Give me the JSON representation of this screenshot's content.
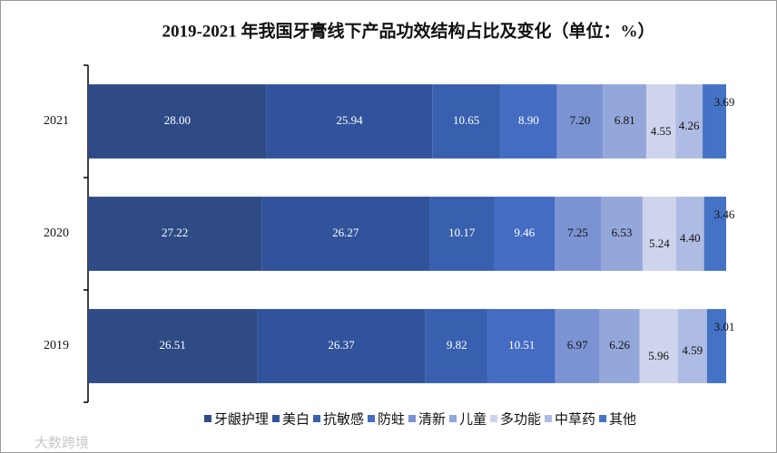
{
  "chart_data": {
    "type": "stacked-bar-horizontal",
    "title": "2019-2021 年我国牙膏线下产品功效结构占比及变化（单位：%）",
    "categories": [
      "2021",
      "2020",
      "2019"
    ],
    "xlim": [
      0,
      100
    ],
    "series": [
      {
        "name": "牙龈护理",
        "color": "#2e4b86",
        "values": [
          28.0,
          27.22,
          26.51
        ],
        "value_labels": [
          "28.00",
          "27.22",
          "26.51"
        ]
      },
      {
        "name": "美白",
        "color": "#30539b",
        "values": [
          25.94,
          26.27,
          26.37
        ],
        "value_labels": [
          "25.94",
          "26.27",
          "26.37"
        ]
      },
      {
        "name": "抗敏感",
        "color": "#3860ae",
        "values": [
          10.65,
          10.17,
          9.82
        ],
        "value_labels": [
          "10.65",
          "10.17",
          "9.82"
        ]
      },
      {
        "name": "防蛀",
        "color": "#436cc2",
        "values": [
          8.9,
          9.46,
          10.51
        ],
        "value_labels": [
          "8.90",
          "9.46",
          "10.51"
        ]
      },
      {
        "name": "清新",
        "color": "#7b93d3",
        "values": [
          7.2,
          7.25,
          6.97
        ],
        "value_labels": [
          "7.20",
          "7.25",
          "6.97"
        ]
      },
      {
        "name": "儿童",
        "color": "#94a7da",
        "values": [
          6.81,
          6.53,
          6.26
        ],
        "value_labels": [
          "6.81",
          "6.53",
          "6.26"
        ]
      },
      {
        "name": "多功能",
        "color": "#cdd4ec",
        "values": [
          4.55,
          5.24,
          5.96
        ],
        "value_labels": [
          "4.55",
          "5.24",
          "5.96"
        ]
      },
      {
        "name": "中草药",
        "color": "#aebbe2",
        "values": [
          4.26,
          4.4,
          4.59
        ],
        "value_labels": [
          "4.26",
          "4.40",
          "4.59"
        ]
      },
      {
        "name": "其他",
        "color": "#4472c4",
        "values": [
          3.69,
          3.46,
          3.01
        ],
        "value_labels": [
          "3.69",
          "3.46",
          "3.01"
        ]
      }
    ],
    "watermark": "大数跨境"
  }
}
